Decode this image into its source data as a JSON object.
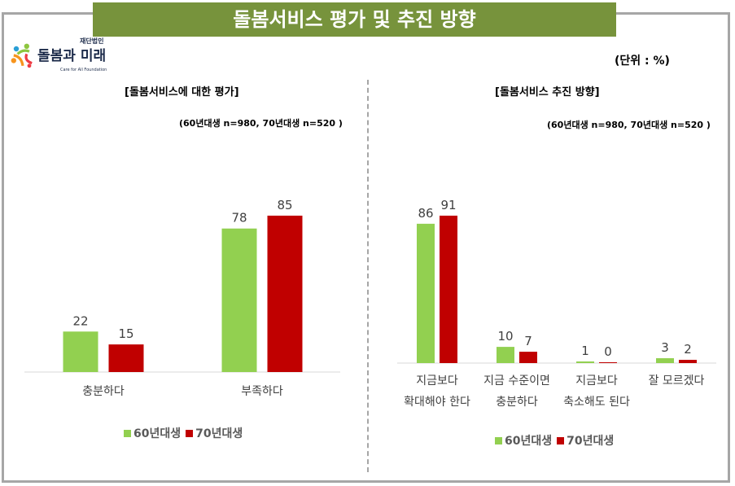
{
  "title": "돌봄서비스 평가 및 추진 방향",
  "logo": {
    "text": "돌봄과 미래",
    "small": "재단법인",
    "english": "Care for All Foundation"
  },
  "unit": "(단위 : %)",
  "colors": {
    "s60": "#92d050",
    "s70": "#c00000"
  },
  "chart_data": [
    {
      "type": "bar",
      "title": "[돌봄서비스에 대한 평가]",
      "note": "(60년대생 n=980, 70년대생 n=520 )",
      "categories": [
        "충분하다",
        "부족하다"
      ],
      "series": [
        {
          "name": "60년대생",
          "values": [
            22,
            78
          ]
        },
        {
          "name": "70년대생",
          "values": [
            15,
            85
          ]
        }
      ],
      "legend": "bottom"
    },
    {
      "type": "bar",
      "title": "[돌봄서비스 추진 방향]",
      "note": "(60년대생 n=980, 70년대생 n=520 )",
      "categories": [
        [
          "지금보다",
          "확대해야 한다"
        ],
        [
          "지금 수준이면",
          "충분하다"
        ],
        [
          "지금보다",
          "축소해도 된다"
        ],
        [
          "잘 모르겠다"
        ]
      ],
      "series": [
        {
          "name": "60년대생",
          "values": [
            86,
            10,
            1,
            3
          ]
        },
        {
          "name": "70년대생",
          "values": [
            91,
            7,
            0,
            2
          ]
        }
      ],
      "legend": "bottom"
    }
  ]
}
